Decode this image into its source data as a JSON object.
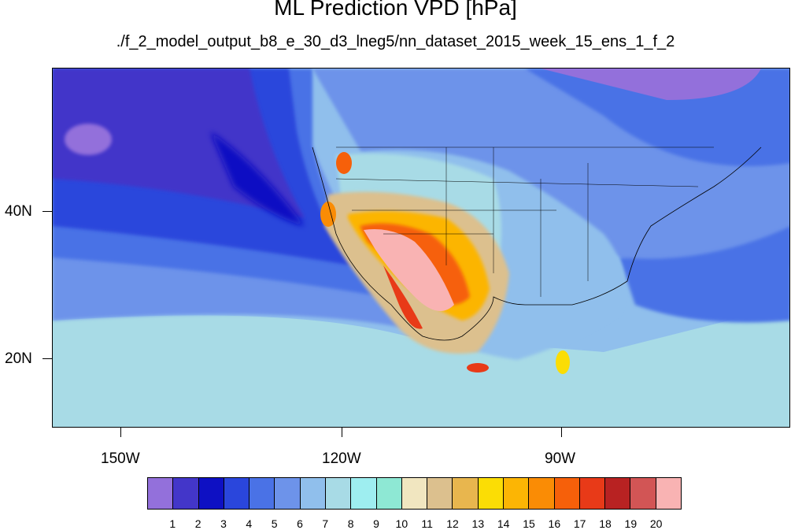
{
  "title": "ML Prediction VPD [hPa]",
  "subtitle": "./f_2_model_output_b8_e_30_d3_lneg5/nn_dataset_2015_week_15_ens_1_f_2",
  "axes": {
    "x_ticks": [
      "150W",
      "120W",
      "90W"
    ],
    "y_ticks": [
      "40N",
      "20N"
    ]
  },
  "legend": {
    "labels": [
      "1",
      "2",
      "3",
      "4",
      "5",
      "6",
      "7",
      "8",
      "9",
      "10",
      "11",
      "12",
      "13",
      "14",
      "15",
      "16",
      "17",
      "18",
      "19",
      "20"
    ],
    "colors": [
      "#9370db",
      "#4336c9",
      "#0e10c3",
      "#2a46dc",
      "#4a72e6",
      "#6d93ea",
      "#90bfec",
      "#a8dbe6",
      "#9eeef0",
      "#8ee8d4",
      "#f1e6c0",
      "#dcc08e",
      "#e8b64e",
      "#fbdd05",
      "#fcb504",
      "#fa8c05",
      "#f6600a",
      "#e83a18",
      "#b82222",
      "#d25555",
      "#f9b3b3"
    ]
  }
}
